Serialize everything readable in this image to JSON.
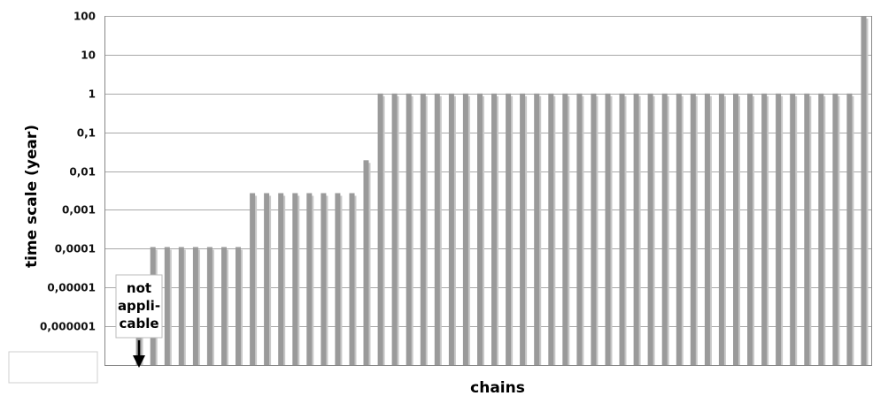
{
  "chart_data": {
    "type": "bar",
    "title": "",
    "xlabel": "chains",
    "ylabel": "time scale (year)",
    "y_scale": "log",
    "ylim": [
      1e-07,
      100
    ],
    "y_ticks": [
      "0,000001",
      "0,00001",
      "0,0001",
      "0,001",
      "0,01",
      "0,1",
      "1",
      "10",
      "100"
    ],
    "y_tick_values": [
      1e-06,
      1e-05,
      0.0001,
      0.001,
      0.01,
      0.1,
      1,
      10,
      100
    ],
    "grid": "horizontal",
    "legend": "none",
    "bar_color": "#9a9a9a",
    "bar_shadow_color": "#c8c8c8",
    "grid_color": "#a8a8a8",
    "annotation": {
      "lines": [
        "not",
        "appli-",
        "cable"
      ]
    },
    "values": [
      null,
      null,
      2e-06,
      0.00011,
      0.00011,
      0.00011,
      0.00011,
      0.00011,
      0.00011,
      0.00011,
      0.0027,
      0.0027,
      0.0027,
      0.0027,
      0.0027,
      0.0027,
      0.0027,
      0.0027,
      0.019,
      1,
      1,
      1,
      1,
      1,
      1,
      1,
      1,
      1,
      1,
      1,
      1,
      1,
      1,
      1,
      1,
      1,
      1,
      1,
      1,
      1,
      1,
      1,
      1,
      1,
      1,
      1,
      1,
      1,
      1,
      1,
      1,
      1,
      1,
      100
    ]
  }
}
